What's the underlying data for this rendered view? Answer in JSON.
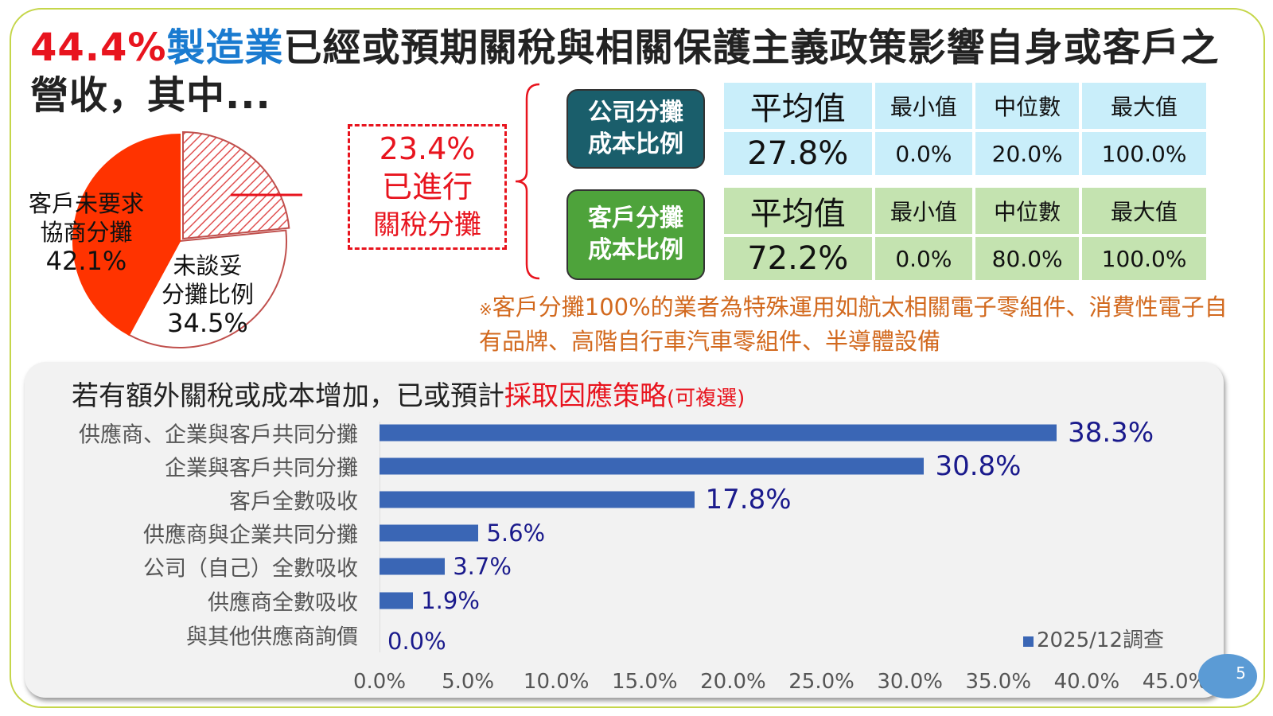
{
  "title": {
    "pct": "44.4%",
    "sector": "製造業",
    "rest": "已經或預期關稅與相關保護主義政策影響自身或客戶之營收，其中..."
  },
  "pie": {
    "slices": [
      {
        "label": "已進行關稅分攤",
        "value": 23.4,
        "pattern": "hatched"
      },
      {
        "label": "未談妥分攤比例",
        "value": 34.5,
        "color": "#ffffff"
      },
      {
        "label": "客戶未要求協商分攤",
        "value": 42.1,
        "color": "#ff3300"
      }
    ],
    "label_a_line1": "客戶未要求",
    "label_a_line2": "協商分攤",
    "label_a_pct": "42.1%",
    "label_b_line1": "未談妥",
    "label_b_line2": "分攤比例",
    "label_b_pct": "34.5%"
  },
  "callout": {
    "pct": "23.4%",
    "line1": "已進行",
    "line2": "關稅分攤"
  },
  "company": {
    "line1": "公司分攤",
    "line2": "成本比例",
    "color": "#1a5e6b",
    "headers": [
      "平均值",
      "最小值",
      "中位數",
      "最大值"
    ],
    "values": [
      "27.8%",
      "0.0%",
      "20.0%",
      "100.0%"
    ],
    "table_color": "#c9eefa"
  },
  "customer": {
    "line1": "客戶分攤",
    "line2": "成本比例",
    "color": "#4ea33b",
    "headers": [
      "平均值",
      "最小值",
      "中位數",
      "最大值"
    ],
    "values": [
      "72.2%",
      "0.0%",
      "80.0%",
      "100.0%"
    ],
    "table_color": "#c4e3b0"
  },
  "note": {
    "mark": "※",
    "text": "客戶分攤100%的業者為特殊運用如航太相關電子零組件、消費性電子自有品牌、高階自行車汽車零組件、半導體設備"
  },
  "chart_data": {
    "type": "bar",
    "orientation": "horizontal",
    "title_prefix": "若有額外關稅或成本增加，已或預計",
    "title_highlight": "採取因應策略",
    "title_note": "(可複選)",
    "categories": [
      "供應商、企業與客戶共同分攤",
      "企業與客戶共同分攤",
      "客戶全數吸收",
      "供應商與企業共同分攤",
      "公司（自己）全數吸收",
      "供應商全數吸收",
      "與其他供應商詢價"
    ],
    "series": [
      {
        "name": "2025/12調查",
        "values": [
          38.3,
          30.8,
          17.8,
          5.6,
          3.7,
          1.9,
          0.0
        ],
        "color": "#3a66b5"
      }
    ],
    "value_labels": [
      "38.3%",
      "30.8%",
      "17.8%",
      "5.6%",
      "3.7%",
      "1.9%",
      "0.0%"
    ],
    "xlim": [
      0,
      45
    ],
    "ticks": [
      "0.0%",
      "5.0%",
      "10.0%",
      "15.0%",
      "20.0%",
      "25.0%",
      "30.0%",
      "35.0%",
      "40.0%",
      "45.0%"
    ],
    "legend": "bottom-right",
    "grid": false
  },
  "page_number": "5"
}
